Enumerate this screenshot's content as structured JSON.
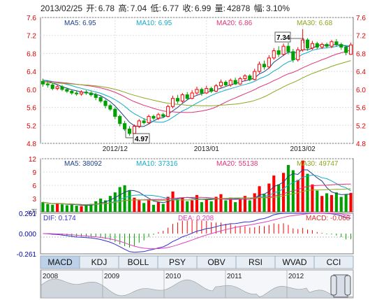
{
  "header": {
    "date": "2013/02/25",
    "open_label": "开:",
    "open": "6.78",
    "high_label": "高:",
    "high": "7.04",
    "low_label": "低:",
    "low": "6.77",
    "close_label": "收:",
    "close": "6.99",
    "volume_label": "量:",
    "volume": "42878",
    "change_label": "幅:",
    "change": "3.10%"
  },
  "price_panel": {
    "ma_legend": [
      {
        "label": "MA5: 6.95",
        "color": "#1f3f8a"
      },
      {
        "label": "MA10: 6.95",
        "color": "#13a9c8"
      },
      {
        "label": "MA20: 6.86",
        "color": "#e0337a"
      },
      {
        "label": "MA30: 6.68",
        "color": "#8aa81f"
      }
    ],
    "y_ticks": [
      "7.6",
      "7.2",
      "6.8",
      "6.4",
      "6.0",
      "5.6",
      "5.2",
      "4.8"
    ],
    "x_ticks": [
      "2012/12",
      "2013/01",
      "2013/02"
    ],
    "high_callout": "7.34",
    "low_callout": "4.97"
  },
  "volume_panel": {
    "ma_legend": [
      {
        "label": "MA5: 38092",
        "color": "#1f3f8a"
      },
      {
        "label": "MA10: 37316",
        "color": "#13a9c8"
      },
      {
        "label": "MA20: 55138",
        "color": "#e0337a"
      },
      {
        "label": "MA30: 49747",
        "color": "#8aa81f"
      }
    ],
    "y_ticks": [
      "12",
      "9",
      "6",
      "3"
    ],
    "unit_label": "x万"
  },
  "macd_panel": {
    "dif_label": "DIF: 0.174",
    "dea_label": "DEA: 0.208",
    "macd_label": "MACD: -0.068",
    "y_ticks": [
      "0.261",
      "0.000",
      "-0.261"
    ]
  },
  "tabs": [
    {
      "label": "MACD",
      "active": true
    },
    {
      "label": "KDJ",
      "active": false
    },
    {
      "label": "BOLL",
      "active": false
    },
    {
      "label": "PSY",
      "active": false
    },
    {
      "label": "OBV",
      "active": false
    },
    {
      "label": "RSI",
      "active": false
    },
    {
      "label": "WVAD",
      "active": false
    },
    {
      "label": "CCI",
      "active": false
    }
  ],
  "overview": {
    "years": [
      "2008",
      "2009",
      "2010",
      "2011",
      "2012"
    ]
  },
  "colors": {
    "up": "#ff0000",
    "down": "#00a000",
    "ma5": "#1f3f8a",
    "ma10": "#13a9c8",
    "ma20": "#e0337a",
    "ma30": "#8aa81f",
    "dif": "#3030d0",
    "dea": "#e040c0",
    "tab_active": "#bcd0e8",
    "tab_bg": "#e6edf5"
  },
  "chart_data": {
    "type": "candlestick",
    "price_range": [
      4.8,
      7.6
    ],
    "candles": [
      [
        6.18,
        6.12,
        6.24,
        6.06
      ],
      [
        6.12,
        6.1,
        6.2,
        6.04
      ],
      [
        6.1,
        6.02,
        6.14,
        5.98
      ],
      [
        6.02,
        6.06,
        6.1,
        5.98
      ],
      [
        6.06,
        6.0,
        6.1,
        5.96
      ],
      [
        6.0,
        5.96,
        6.04,
        5.92
      ],
      [
        5.96,
        5.92,
        6.0,
        5.88
      ],
      [
        5.92,
        5.9,
        5.98,
        5.86
      ],
      [
        5.9,
        5.94,
        5.98,
        5.86
      ],
      [
        5.94,
        5.92,
        5.98,
        5.88
      ],
      [
        5.92,
        5.88,
        5.96,
        5.84
      ],
      [
        5.88,
        5.82,
        5.92,
        5.76
      ],
      [
        5.82,
        5.74,
        5.86,
        5.7
      ],
      [
        5.74,
        5.64,
        5.78,
        5.58
      ],
      [
        5.64,
        5.56,
        5.68,
        5.52
      ],
      [
        5.56,
        5.4,
        5.6,
        5.34
      ],
      [
        5.4,
        5.24,
        5.44,
        5.18
      ],
      [
        5.24,
        5.12,
        5.3,
        5.08
      ],
      [
        5.12,
        5.02,
        5.18,
        4.97
      ],
      [
        5.02,
        5.18,
        5.22,
        5.0
      ],
      [
        5.18,
        5.3,
        5.34,
        5.14
      ],
      [
        5.3,
        5.26,
        5.36,
        5.22
      ],
      [
        5.26,
        5.4,
        5.44,
        5.22
      ],
      [
        5.4,
        5.36,
        5.44,
        5.32
      ],
      [
        5.36,
        5.44,
        5.48,
        5.32
      ],
      [
        5.44,
        5.4,
        5.48,
        5.36
      ],
      [
        5.4,
        5.62,
        5.66,
        5.38
      ],
      [
        5.62,
        5.8,
        5.86,
        5.58
      ],
      [
        5.8,
        5.74,
        5.88,
        5.68
      ],
      [
        5.74,
        5.88,
        5.92,
        5.7
      ],
      [
        5.88,
        5.8,
        5.94,
        5.76
      ],
      [
        5.8,
        5.92,
        5.98,
        5.78
      ],
      [
        5.92,
        6.0,
        6.06,
        5.88
      ],
      [
        6.0,
        5.92,
        6.04,
        5.86
      ],
      [
        5.92,
        6.02,
        6.08,
        5.9
      ],
      [
        6.02,
        5.96,
        6.06,
        5.92
      ],
      [
        5.96,
        6.08,
        6.12,
        5.94
      ],
      [
        6.08,
        6.16,
        6.22,
        6.04
      ],
      [
        6.16,
        6.1,
        6.2,
        6.06
      ],
      [
        6.1,
        6.2,
        6.24,
        6.06
      ],
      [
        6.2,
        6.12,
        6.26,
        6.1
      ],
      [
        6.12,
        6.24,
        6.28,
        6.1
      ],
      [
        6.24,
        6.3,
        6.34,
        6.18
      ],
      [
        6.3,
        6.22,
        6.34,
        6.18
      ],
      [
        6.22,
        6.4,
        6.46,
        6.2
      ],
      [
        6.4,
        6.56,
        6.62,
        6.36
      ],
      [
        6.56,
        6.5,
        6.64,
        6.44
      ],
      [
        6.5,
        6.7,
        6.76,
        6.46
      ],
      [
        6.7,
        6.86,
        6.92,
        6.66
      ],
      [
        6.86,
        6.78,
        6.96,
        6.72
      ],
      [
        6.78,
        6.96,
        7.02,
        6.74
      ],
      [
        6.96,
        6.84,
        7.04,
        6.78
      ],
      [
        6.84,
        6.66,
        6.9,
        6.6
      ],
      [
        6.66,
        6.88,
        6.94,
        6.62
      ],
      [
        6.88,
        7.1,
        7.34,
        6.84
      ],
      [
        7.1,
        6.92,
        7.14,
        6.86
      ],
      [
        6.92,
        7.02,
        7.08,
        6.88
      ],
      [
        7.02,
        6.94,
        7.06,
        6.9
      ],
      [
        6.94,
        7.0,
        7.04,
        6.9
      ],
      [
        7.0,
        6.96,
        7.04,
        6.92
      ],
      [
        6.96,
        7.06,
        7.1,
        6.92
      ],
      [
        7.06,
        7.0,
        7.12,
        6.96
      ],
      [
        7.0,
        6.94,
        7.04,
        6.88
      ],
      [
        6.94,
        6.82,
        6.98,
        6.76
      ],
      [
        6.78,
        6.99,
        7.04,
        6.77
      ]
    ],
    "volumes": [
      2.2,
      1.8,
      1.6,
      2.0,
      1.7,
      1.5,
      1.6,
      1.4,
      1.3,
      1.5,
      1.8,
      2.4,
      3.0,
      2.6,
      3.6,
      4.4,
      5.6,
      6.0,
      4.8,
      3.2,
      2.6,
      2.0,
      2.8,
      1.6,
      2.2,
      1.8,
      3.4,
      4.6,
      2.8,
      3.2,
      2.4,
      2.6,
      3.8,
      2.2,
      2.8,
      2.4,
      3.4,
      4.0,
      2.6,
      3.2,
      2.2,
      2.8,
      3.6,
      2.6,
      4.2,
      5.8,
      4.0,
      6.4,
      8.2,
      6.2,
      8.8,
      10.6,
      9.4,
      7.2,
      11.6,
      8.6,
      6.2,
      4.8,
      3.6,
      4.2,
      3.8,
      4.4,
      3.4,
      4.0,
      4.3
    ],
    "volume_range": [
      0,
      12
    ],
    "macd_range": [
      -0.261,
      0.261
    ]
  }
}
